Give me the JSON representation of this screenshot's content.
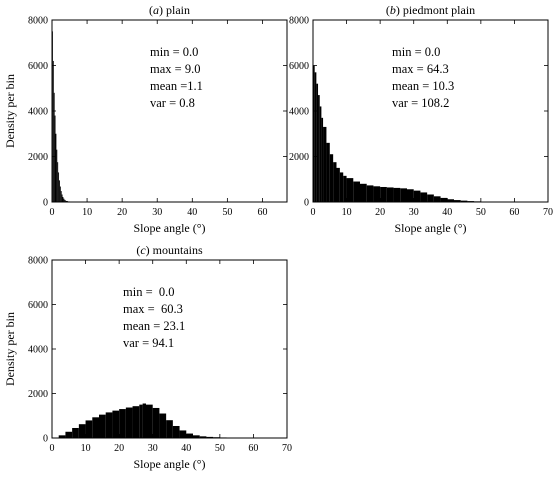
{
  "chart_data": [
    {
      "type": "bar",
      "panel_title": "(a) plain",
      "title_letter": "a",
      "title_text": "plain",
      "xlabel": "Slope angle (°)",
      "ylabel": "Density per bin",
      "xlim": [
        0,
        67
      ],
      "ylim": [
        0,
        8000
      ],
      "xticks": [
        "0",
        "10",
        "20",
        "30",
        "40",
        "50",
        "60"
      ],
      "yticks": [
        "0",
        "2000",
        "4000",
        "6000",
        "8000"
      ],
      "stats": [
        "min = 0.0",
        "max = 9.0",
        "mean =1.1",
        "var = 0.8"
      ],
      "bin_width": 0.25,
      "x": [
        0,
        0.25,
        0.5,
        0.75,
        1,
        1.25,
        1.5,
        1.75,
        2,
        2.25,
        2.5,
        2.75,
        3,
        3.25,
        3.5,
        3.75,
        4,
        4.5,
        5,
        6,
        7,
        8,
        9
      ],
      "values": [
        7500,
        6200,
        4800,
        3800,
        3000,
        2300,
        1750,
        1300,
        950,
        680,
        480,
        330,
        220,
        150,
        100,
        70,
        45,
        25,
        15,
        8,
        4,
        2,
        1
      ],
      "color": "#000000"
    },
    {
      "type": "bar",
      "panel_title": "(b) piedmont plain",
      "title_letter": "b",
      "title_text": "piedmont plain",
      "xlabel": "Slope angle (°)",
      "ylabel": "",
      "xlim": [
        0,
        70
      ],
      "ylim": [
        0,
        8000
      ],
      "xticks": [
        "0",
        "10",
        "20",
        "30",
        "40",
        "50",
        "60",
        "70"
      ],
      "yticks": [
        "0",
        "2000",
        "4000",
        "6000",
        "8000"
      ],
      "stats": [
        "min = 0.0",
        "max = 64.3",
        "mean = 10.3",
        "var = 108.2"
      ],
      "bin_width": 0.5,
      "x": [
        0,
        0.5,
        1,
        1.5,
        2,
        2.5,
        3,
        4,
        5,
        6,
        7,
        8,
        9,
        10,
        12,
        14,
        16,
        18,
        20,
        22,
        24,
        26,
        28,
        30,
        32,
        34,
        36,
        38,
        40,
        42,
        44,
        46,
        48,
        50,
        52,
        55,
        58,
        61,
        64
      ],
      "values": [
        6000,
        5700,
        5200,
        4700,
        4200,
        3700,
        3300,
        2600,
        2100,
        1750,
        1500,
        1300,
        1150,
        1050,
        900,
        800,
        730,
        690,
        660,
        640,
        620,
        600,
        560,
        500,
        420,
        330,
        250,
        180,
        120,
        85,
        60,
        40,
        28,
        20,
        14,
        10,
        6,
        4,
        2
      ],
      "color": "#000000"
    },
    {
      "type": "bar",
      "panel_title": "(c) mountains",
      "title_letter": "c",
      "title_text": "mountains",
      "xlabel": "Slope angle (°)",
      "ylabel": "Density per bin",
      "xlim": [
        0,
        70
      ],
      "ylim": [
        0,
        8000
      ],
      "xticks": [
        "0",
        "10",
        "20",
        "30",
        "40",
        "50",
        "60",
        "70"
      ],
      "yticks": [
        "0",
        "2000",
        "4000",
        "6000",
        "8000"
      ],
      "stats": [
        "min =  0.0",
        "max =  60.3",
        "mean = 23.1",
        "var = 94.1"
      ],
      "bin_width": 0.5,
      "x": [
        0,
        2,
        4,
        6,
        8,
        10,
        12,
        14,
        16,
        18,
        20,
        22,
        24,
        26,
        27,
        28,
        30,
        32,
        34,
        36,
        38,
        40,
        42,
        44,
        46,
        48,
        50,
        52,
        55,
        58,
        60
      ],
      "values": [
        20,
        120,
        280,
        450,
        620,
        790,
        930,
        1050,
        1150,
        1230,
        1300,
        1370,
        1430,
        1500,
        1550,
        1500,
        1350,
        1100,
        800,
        540,
        340,
        200,
        120,
        75,
        50,
        35,
        25,
        18,
        10,
        5,
        2
      ],
      "color": "#000000"
    }
  ]
}
